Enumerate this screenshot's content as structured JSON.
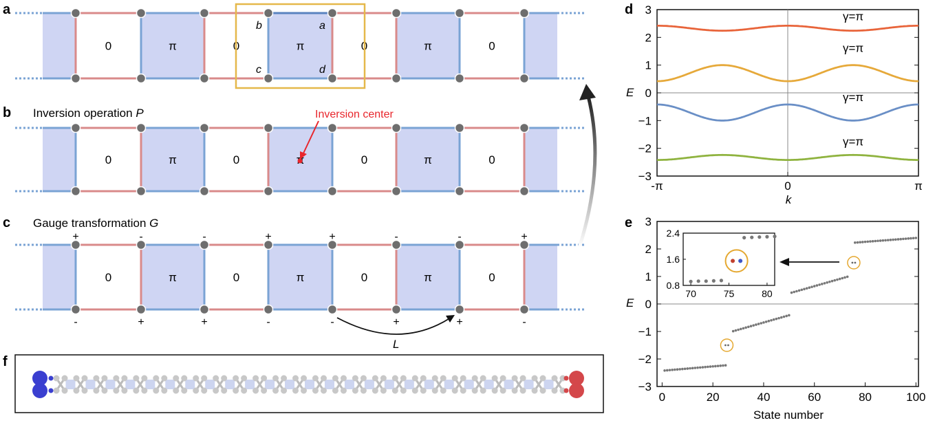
{
  "panels": {
    "a": {
      "label": "a",
      "corner_labels": [
        "b",
        "a",
        "c",
        "d"
      ]
    },
    "b": {
      "label": "b",
      "title": "Inversion operation ",
      "title_italic": "P",
      "center_label": "Inversion center"
    },
    "c": {
      "label": "c",
      "title": "Gauge transformation ",
      "title_italic": "G",
      "top_signs": [
        "+",
        "-",
        "-",
        "+",
        "+",
        "-",
        "-",
        "+"
      ],
      "bottom_signs": [
        "-",
        "+",
        "+",
        "-",
        "-",
        "+",
        "+",
        "-"
      ],
      "arrow_label": "L"
    },
    "d": {
      "label": "d"
    },
    "e": {
      "label": "e"
    },
    "f": {
      "label": "f"
    }
  },
  "plaquette_fluxes": [
    "0",
    "π",
    "0",
    "π",
    "0",
    "π",
    "0"
  ],
  "colors": {
    "blue_bond": "#7aa3d4",
    "red_bond": "#d98a8a",
    "plaquette_fill": "#cfd5f3",
    "site": "#6e6e6e",
    "frame": "#e5b84a",
    "inversion": "#e8262c"
  },
  "chart_data": [
    {
      "panel": "d",
      "type": "line",
      "xlabel": "k",
      "ylabel": "E",
      "xlim": [
        -3.1416,
        3.1416
      ],
      "ylim": [
        -3,
        3
      ],
      "xticks": [
        "-π",
        "0",
        "π"
      ],
      "yticks": [
        "3",
        "2",
        "1",
        "0",
        "−1",
        "−2",
        "−3"
      ],
      "series": [
        {
          "name": "γ=π",
          "color": "#e8643a",
          "band": {
            "mean": 2.33,
            "amp": 0.09,
            "sign": 1
          }
        },
        {
          "name": "γ=π",
          "color": "#e6a93a",
          "band": {
            "mean": 0.71,
            "amp": 0.29,
            "sign": -1
          }
        },
        {
          "name": "γ=π",
          "color": "#6a8fc6",
          "band": {
            "mean": -0.71,
            "amp": 0.29,
            "sign": 1
          }
        },
        {
          "name": "γ=π",
          "color": "#8fb33f",
          "band": {
            "mean": -2.33,
            "amp": 0.09,
            "sign": -1
          }
        }
      ]
    },
    {
      "panel": "e",
      "type": "scatter",
      "xlabel": "State number",
      "ylabel": "E",
      "xlim": [
        -2,
        101
      ],
      "ylim": [
        -3,
        3
      ],
      "xticks": [
        "0",
        "20",
        "40",
        "60",
        "80",
        "100"
      ],
      "yticks": [
        "3",
        "2",
        "1",
        "0",
        "−1",
        "−2",
        "−3"
      ],
      "bands": [
        {
          "from": 1,
          "to": 25,
          "start": -2.42,
          "end": -2.23
        },
        {
          "from": 28,
          "to": 50,
          "start": -0.99,
          "end": -0.41
        },
        {
          "from": 51,
          "to": 73,
          "start": 0.41,
          "end": 0.99
        },
        {
          "from": 76,
          "to": 100,
          "start": 2.23,
          "end": 2.4
        }
      ],
      "edge_states": [
        {
          "x": 25.5,
          "y": -1.5
        },
        {
          "x": 75.5,
          "y": 1.5
        }
      ],
      "inset": {
        "xlim": [
          69,
          81
        ],
        "ylim": [
          0.8,
          2.4
        ],
        "xticks": [
          "70",
          "75",
          "80"
        ],
        "yticks": [
          "2.4",
          "1.6",
          "0.8"
        ],
        "points": [
          [
            70,
            0.92
          ],
          [
            71,
            0.93
          ],
          [
            72,
            0.93
          ],
          [
            73,
            0.94
          ],
          [
            74,
            0.95
          ],
          [
            77,
            2.26
          ],
          [
            78,
            2.27
          ],
          [
            79,
            2.28
          ],
          [
            80,
            2.29
          ],
          [
            81,
            2.3
          ]
        ],
        "edge_points": [
          {
            "x": 75.5,
            "y": 1.55,
            "color": "#c2412f"
          },
          {
            "x": 76.5,
            "y": 1.55,
            "color": "#3c55c8"
          }
        ]
      }
    }
  ]
}
